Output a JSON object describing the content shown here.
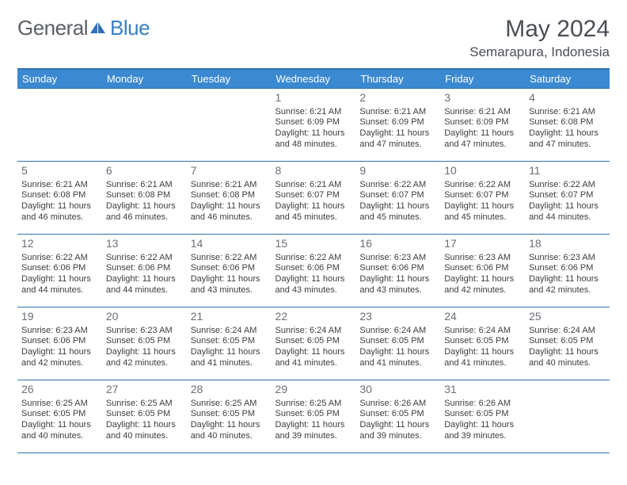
{
  "logo": {
    "part1": "General",
    "part2": "Blue"
  },
  "title": "May 2024",
  "location": "Semarapura, Indonesia",
  "header_bg": "#3b89d0",
  "border_color": "#2f70b8",
  "days_of_week": [
    "Sunday",
    "Monday",
    "Tuesday",
    "Wednesday",
    "Thursday",
    "Friday",
    "Saturday"
  ],
  "weeks": [
    [
      null,
      null,
      null,
      {
        "d": "1",
        "sr": "6:21 AM",
        "ss": "6:09 PM",
        "dl": "11 hours and 48 minutes."
      },
      {
        "d": "2",
        "sr": "6:21 AM",
        "ss": "6:09 PM",
        "dl": "11 hours and 47 minutes."
      },
      {
        "d": "3",
        "sr": "6:21 AM",
        "ss": "6:09 PM",
        "dl": "11 hours and 47 minutes."
      },
      {
        "d": "4",
        "sr": "6:21 AM",
        "ss": "6:08 PM",
        "dl": "11 hours and 47 minutes."
      }
    ],
    [
      {
        "d": "5",
        "sr": "6:21 AM",
        "ss": "6:08 PM",
        "dl": "11 hours and 46 minutes."
      },
      {
        "d": "6",
        "sr": "6:21 AM",
        "ss": "6:08 PM",
        "dl": "11 hours and 46 minutes."
      },
      {
        "d": "7",
        "sr": "6:21 AM",
        "ss": "6:08 PM",
        "dl": "11 hours and 46 minutes."
      },
      {
        "d": "8",
        "sr": "6:21 AM",
        "ss": "6:07 PM",
        "dl": "11 hours and 45 minutes."
      },
      {
        "d": "9",
        "sr": "6:22 AM",
        "ss": "6:07 PM",
        "dl": "11 hours and 45 minutes."
      },
      {
        "d": "10",
        "sr": "6:22 AM",
        "ss": "6:07 PM",
        "dl": "11 hours and 45 minutes."
      },
      {
        "d": "11",
        "sr": "6:22 AM",
        "ss": "6:07 PM",
        "dl": "11 hours and 44 minutes."
      }
    ],
    [
      {
        "d": "12",
        "sr": "6:22 AM",
        "ss": "6:06 PM",
        "dl": "11 hours and 44 minutes."
      },
      {
        "d": "13",
        "sr": "6:22 AM",
        "ss": "6:06 PM",
        "dl": "11 hours and 44 minutes."
      },
      {
        "d": "14",
        "sr": "6:22 AM",
        "ss": "6:06 PM",
        "dl": "11 hours and 43 minutes."
      },
      {
        "d": "15",
        "sr": "6:22 AM",
        "ss": "6:06 PM",
        "dl": "11 hours and 43 minutes."
      },
      {
        "d": "16",
        "sr": "6:23 AM",
        "ss": "6:06 PM",
        "dl": "11 hours and 43 minutes."
      },
      {
        "d": "17",
        "sr": "6:23 AM",
        "ss": "6:06 PM",
        "dl": "11 hours and 42 minutes."
      },
      {
        "d": "18",
        "sr": "6:23 AM",
        "ss": "6:06 PM",
        "dl": "11 hours and 42 minutes."
      }
    ],
    [
      {
        "d": "19",
        "sr": "6:23 AM",
        "ss": "6:06 PM",
        "dl": "11 hours and 42 minutes."
      },
      {
        "d": "20",
        "sr": "6:23 AM",
        "ss": "6:05 PM",
        "dl": "11 hours and 42 minutes."
      },
      {
        "d": "21",
        "sr": "6:24 AM",
        "ss": "6:05 PM",
        "dl": "11 hours and 41 minutes."
      },
      {
        "d": "22",
        "sr": "6:24 AM",
        "ss": "6:05 PM",
        "dl": "11 hours and 41 minutes."
      },
      {
        "d": "23",
        "sr": "6:24 AM",
        "ss": "6:05 PM",
        "dl": "11 hours and 41 minutes."
      },
      {
        "d": "24",
        "sr": "6:24 AM",
        "ss": "6:05 PM",
        "dl": "11 hours and 41 minutes."
      },
      {
        "d": "25",
        "sr": "6:24 AM",
        "ss": "6:05 PM",
        "dl": "11 hours and 40 minutes."
      }
    ],
    [
      {
        "d": "26",
        "sr": "6:25 AM",
        "ss": "6:05 PM",
        "dl": "11 hours and 40 minutes."
      },
      {
        "d": "27",
        "sr": "6:25 AM",
        "ss": "6:05 PM",
        "dl": "11 hours and 40 minutes."
      },
      {
        "d": "28",
        "sr": "6:25 AM",
        "ss": "6:05 PM",
        "dl": "11 hours and 40 minutes."
      },
      {
        "d": "29",
        "sr": "6:25 AM",
        "ss": "6:05 PM",
        "dl": "11 hours and 39 minutes."
      },
      {
        "d": "30",
        "sr": "6:26 AM",
        "ss": "6:05 PM",
        "dl": "11 hours and 39 minutes."
      },
      {
        "d": "31",
        "sr": "6:26 AM",
        "ss": "6:05 PM",
        "dl": "11 hours and 39 minutes."
      },
      null
    ]
  ],
  "labels": {
    "sunrise": "Sunrise:",
    "sunset": "Sunset:",
    "daylight": "Daylight:"
  }
}
